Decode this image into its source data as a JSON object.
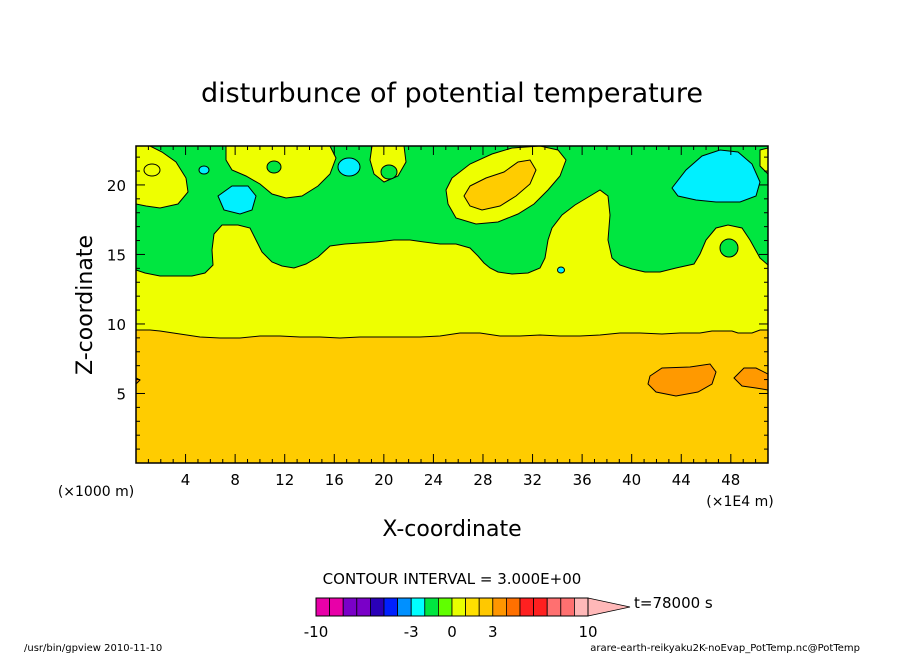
{
  "chart_data": {
    "type": "heatmap",
    "title": "disturbunce of potential temperature",
    "xlabel": "X-coordinate",
    "ylabel": "Z-coordinate",
    "x_unit_left": "(×1000 m)",
    "x_unit_right": "(×1E4 m)",
    "xlim": [
      0,
      51
    ],
    "ylim": [
      0,
      22.8
    ],
    "x_ticks": [
      4,
      8,
      12,
      16,
      20,
      24,
      28,
      32,
      36,
      40,
      44,
      48
    ],
    "y_ticks": [
      5,
      10,
      15,
      20
    ],
    "contour_interval_text": "CONTOUR INTERVAL = 3.000E+00",
    "time_label": "t=78000 s",
    "colorbar_levels": [
      -10,
      -9,
      -8,
      -7,
      -6,
      -5,
      -4,
      -3,
      -2,
      -1,
      0,
      1,
      2,
      3,
      4,
      5,
      6,
      7,
      8,
      9,
      10
    ],
    "colorbar_labels": [
      "-10",
      "-3",
      "0",
      "3",
      "10"
    ],
    "colorbar_label_values": [
      -10,
      -3,
      0,
      3,
      10
    ],
    "colorbar_colors": [
      "#e800a8",
      "#e800a8",
      "#7a00c8",
      "#7a00c8",
      "#2a00b8",
      "#0020ff",
      "#0090ff",
      "#00ffff",
      "#00e640",
      "#60ff00",
      "#e8ff00",
      "#ffe000",
      "#ffc800",
      "#ff9600",
      "#ff7000",
      "#ff2020",
      "#ff2020",
      "#ff7070",
      "#ff7070",
      "#ffb8b8"
    ],
    "regions": [
      {
        "name": "cool-band-0-to-minus3",
        "value_range": [
          -3,
          0
        ],
        "color": "#00e640",
        "z_bottom": 13.5,
        "z_top": 22.8
      },
      {
        "name": "band-0-to-3",
        "value_range": [
          0,
          3
        ],
        "color": "#eeff00",
        "z_bottom": 9.4,
        "z_top": 17
      },
      {
        "name": "band-3-to-6",
        "value_range": [
          3,
          6
        ],
        "color": "#ffcc00",
        "z_bottom": 0,
        "z_top": 9.4
      },
      {
        "name": "warm-patch",
        "value_range": [
          6,
          9
        ],
        "color": "#ff9900",
        "x_center": 45,
        "z_center": 5.8
      },
      {
        "name": "cold-patch",
        "value_range": [
          -6,
          -3
        ],
        "color": "#00f0ff",
        "x_center": 47,
        "z_center": 20.3
      }
    ]
  },
  "footer": {
    "left": "/usr/bin/gpview   2010-11-10",
    "right": "arare-earth-reikyaku2K-noEvap_PotTemp.nc@PotTemp"
  },
  "colors": {
    "green": "#00e640",
    "yellow": "#eeff00",
    "gold": "#ffcc00",
    "orange": "#ff9900",
    "cyan": "#00f0ff"
  }
}
